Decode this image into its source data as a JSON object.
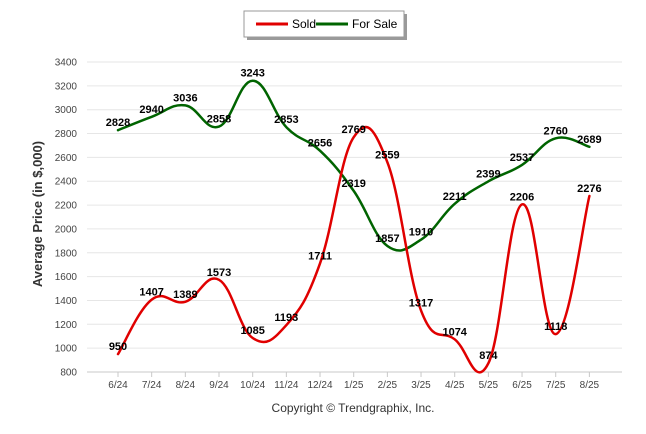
{
  "chart_data": {
    "type": "line",
    "ylabel": "Average Price (in $,000)",
    "ylim": [
      800,
      3400
    ],
    "yticks": [
      800,
      1000,
      1200,
      1400,
      1600,
      1800,
      2000,
      2200,
      2400,
      2600,
      2800,
      3000,
      3200,
      3400
    ],
    "categories": [
      "6/24",
      "7/24",
      "8/24",
      "9/24",
      "10/24",
      "11/24",
      "12/24",
      "1/25",
      "2/25",
      "3/25",
      "4/25",
      "5/25",
      "6/25",
      "7/25",
      "8/25"
    ],
    "grid": "horizontal",
    "legend_position": "top-center",
    "series": [
      {
        "name": "Sold",
        "color": "#e00000",
        "values": [
          950,
          1407,
          1389,
          1573,
          1085,
          1193,
          1711,
          2769,
          2559,
          1317,
          1074,
          874,
          2206,
          1118,
          2276
        ]
      },
      {
        "name": "For Sale",
        "color": "#006400",
        "values": [
          2828,
          2940,
          3036,
          2858,
          3243,
          2853,
          2656,
          2319,
          1857,
          1910,
          2211,
          2399,
          2537,
          2760,
          2689
        ]
      }
    ],
    "footer": "Copyright © Trendgraphix, Inc."
  }
}
